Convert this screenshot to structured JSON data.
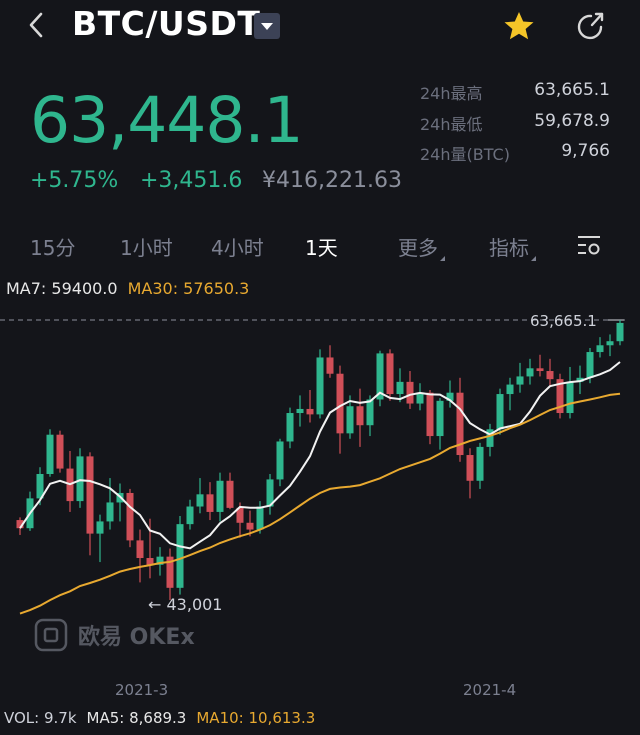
{
  "header": {
    "pair": "BTC/USDT"
  },
  "price": {
    "last": "63,448.1",
    "change_pct": "+5.75%",
    "change_abs": "+3,451.6",
    "cny": "¥416,221.63"
  },
  "stats": [
    {
      "label": "24h最高",
      "value": "63,665.1"
    },
    {
      "label": "24h最低",
      "value": "59,678.9"
    },
    {
      "label": "24h量(BTC)",
      "value": "9,766"
    }
  ],
  "periods": [
    "15分",
    "1小时",
    "4小时",
    "1天"
  ],
  "active_period": "1天",
  "more_label": "更多",
  "indicators_label": "指标",
  "ma": {
    "ma7": "MA7: 59400.0",
    "ma30": "MA30: 57650.3"
  },
  "chart": {
    "high_label": "63,665.1",
    "low_label": "← 43,001",
    "x_labels": [
      "2021-3",
      "2021-4"
    ],
    "watermark": "欧易 OKEx",
    "up_color": "#2fb68e",
    "down_color": "#d04f58"
  },
  "volume": {
    "vol": "VOL: 9.7k",
    "ma5": "MA5: 8,689.3",
    "ma10": "MA10: 10,613.3"
  },
  "chart_data": {
    "type": "candlestick",
    "x_ticks": [
      "2021-3",
      "2021-4"
    ],
    "y_range": [
      43001,
      63665.1
    ],
    "annotations": [
      "63,665.1",
      "43,001"
    ],
    "candles_ohlc": [
      [
        48900,
        49100,
        47800,
        48300
      ],
      [
        48300,
        51000,
        48100,
        50500
      ],
      [
        50500,
        52800,
        50000,
        52300
      ],
      [
        52300,
        55600,
        52100,
        55200
      ],
      [
        55200,
        55500,
        52400,
        52700
      ],
      [
        52700,
        54000,
        49500,
        50300
      ],
      [
        50300,
        54200,
        49800,
        53600
      ],
      [
        53600,
        53900,
        46300,
        47900
      ],
      [
        47900,
        49300,
        45800,
        48800
      ],
      [
        48800,
        52000,
        48200,
        50200
      ],
      [
        50200,
        51600,
        48800,
        50900
      ],
      [
        50900,
        51200,
        46900,
        47400
      ],
      [
        47400,
        48200,
        44300,
        46100
      ],
      [
        46100,
        49000,
        44600,
        45600
      ],
      [
        45600,
        46900,
        44800,
        46200
      ],
      [
        46200,
        46800,
        43001,
        43900
      ],
      [
        43900,
        49200,
        43400,
        48600
      ],
      [
        48600,
        50400,
        48200,
        49900
      ],
      [
        49900,
        52000,
        49400,
        50800
      ],
      [
        50800,
        51700,
        48900,
        49500
      ],
      [
        49500,
        52400,
        48800,
        51800
      ],
      [
        51800,
        52400,
        49700,
        49800
      ],
      [
        49800,
        50200,
        47600,
        48700
      ],
      [
        48700,
        49600,
        47700,
        48200
      ],
      [
        48200,
        50300,
        47900,
        49900
      ],
      [
        49900,
        52300,
        49300,
        51900
      ],
      [
        51900,
        54900,
        51400,
        54700
      ],
      [
        54700,
        57200,
        54200,
        56800
      ],
      [
        56800,
        58100,
        55800,
        57100
      ],
      [
        57100,
        58500,
        56100,
        56700
      ],
      [
        56700,
        61500,
        56400,
        60900
      ],
      [
        60900,
        61800,
        59400,
        59700
      ],
      [
        59700,
        60300,
        53800,
        55300
      ],
      [
        55300,
        58100,
        54900,
        57300
      ],
      [
        57300,
        58600,
        54300,
        55900
      ],
      [
        55900,
        58100,
        55100,
        57800
      ],
      [
        57800,
        61400,
        57300,
        61200
      ],
      [
        61200,
        61500,
        57700,
        58200
      ],
      [
        58200,
        60100,
        57600,
        59100
      ],
      [
        59100,
        59900,
        57100,
        57500
      ],
      [
        57500,
        59000,
        57000,
        58300
      ],
      [
        58300,
        58500,
        54500,
        55100
      ],
      [
        55100,
        57900,
        54100,
        57700
      ],
      [
        57700,
        59200,
        57200,
        58300
      ],
      [
        58300,
        59400,
        53200,
        53700
      ],
      [
        53700,
        54200,
        50500,
        51800
      ],
      [
        51800,
        54600,
        51200,
        54300
      ],
      [
        54300,
        56000,
        53600,
        55600
      ],
      [
        55600,
        58600,
        55200,
        58200
      ],
      [
        58200,
        59400,
        57000,
        58900
      ],
      [
        58900,
        60500,
        58300,
        59500
      ],
      [
        59500,
        60800,
        58900,
        60100
      ],
      [
        60100,
        61100,
        59500,
        59900
      ],
      [
        59900,
        60800,
        58700,
        59300
      ],
      [
        59300,
        59700,
        56400,
        56800
      ],
      [
        56800,
        60200,
        56400,
        59100
      ],
      [
        59100,
        60300,
        58200,
        59400
      ],
      [
        59400,
        61600,
        59000,
        61300
      ],
      [
        61300,
        62400,
        60900,
        61800
      ],
      [
        61800,
        62600,
        61000,
        62100
      ],
      [
        62100,
        63665.1,
        61800,
        63448.1
      ]
    ]
  }
}
